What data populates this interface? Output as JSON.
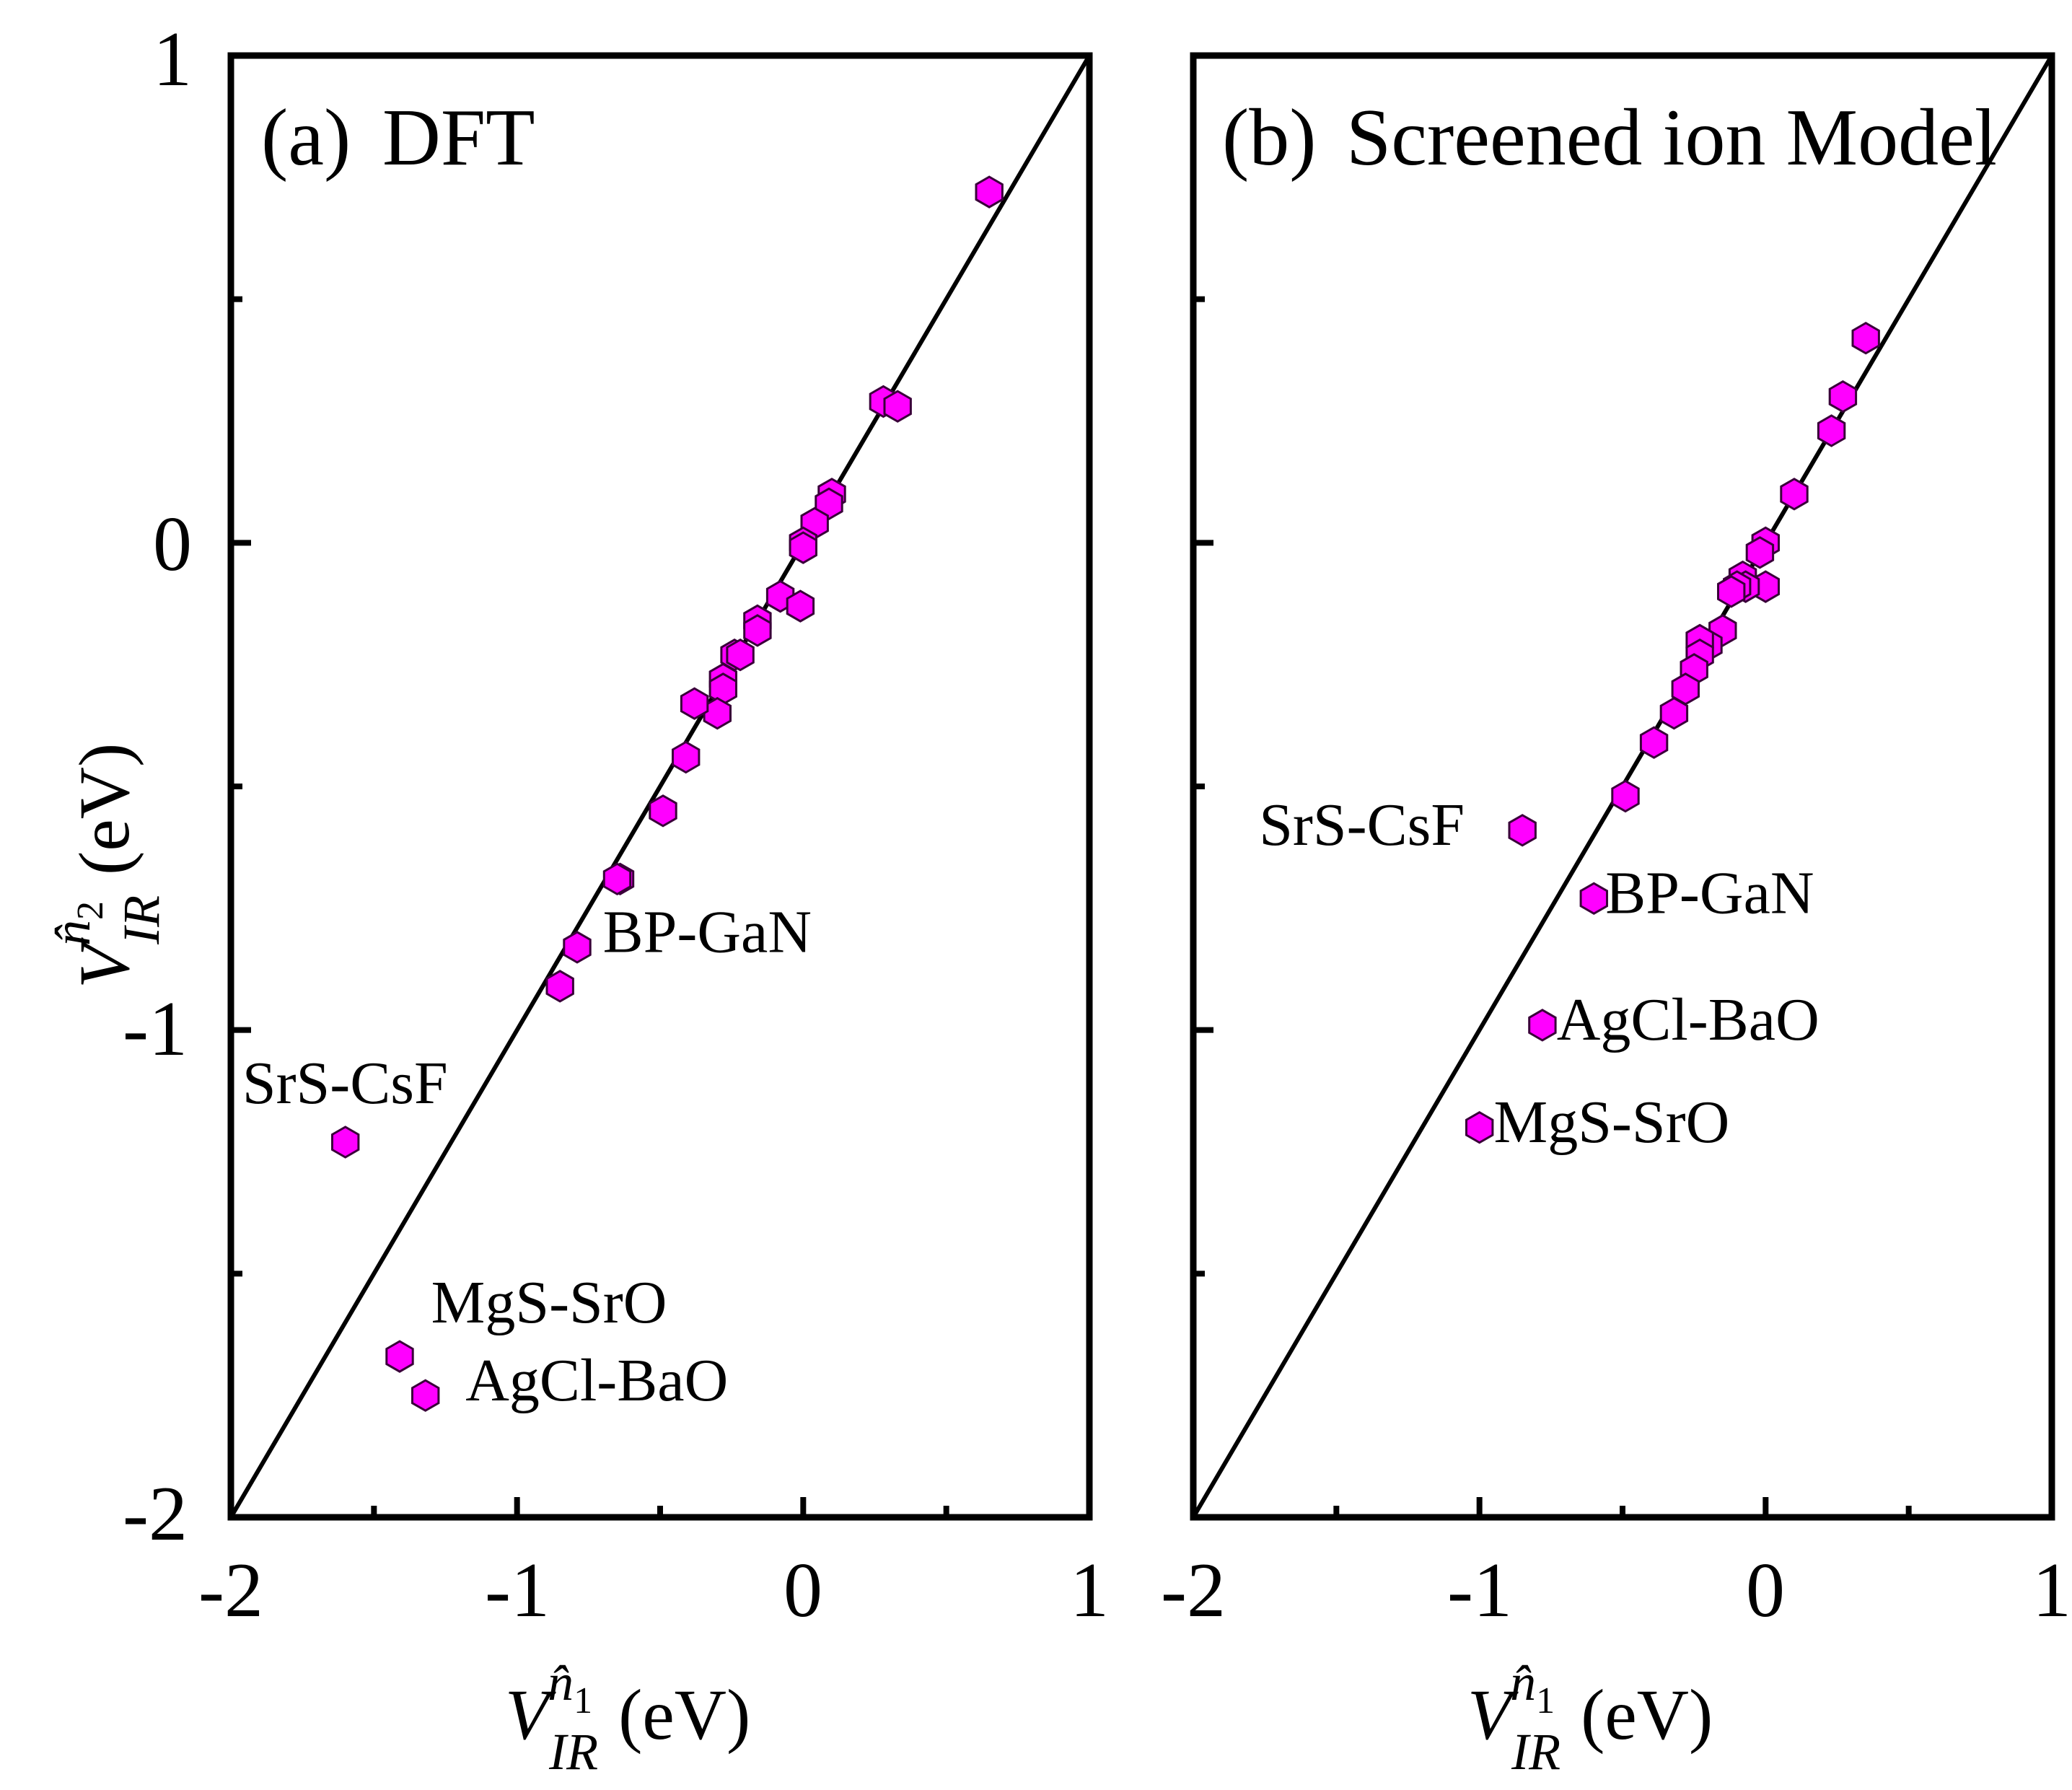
{
  "figure": {
    "colors": {
      "marker_fill": "#ff00ff",
      "marker_stroke": "#3a003a",
      "frame": "#000000",
      "diagonal": "#000000"
    }
  },
  "chart_data": [
    {
      "type": "scatter",
      "panel_label": "(a)",
      "title": "DFT",
      "xlabel": "V_IR^{n1} (eV)",
      "ylabel": "V_IR^{n2} (eV)",
      "xlim": [
        -2,
        1
      ],
      "ylim": [
        -2,
        1
      ],
      "x_ticks": [
        -2,
        -1,
        0,
        1
      ],
      "y_ticks": [
        -2,
        -1,
        0,
        1
      ],
      "x_tick_labels": [
        "-2",
        "-1",
        "0",
        "1"
      ],
      "y_tick_labels": [
        "-2",
        "-1",
        "0",
        "1"
      ],
      "reference_line": "y = x",
      "points": [
        {
          "x": 0.65,
          "y": 0.72
        },
        {
          "x": 0.28,
          "y": 0.29
        },
        {
          "x": 0.33,
          "y": 0.28
        },
        {
          "x": 0.1,
          "y": 0.1
        },
        {
          "x": 0.09,
          "y": 0.08
        },
        {
          "x": 0.04,
          "y": 0.04
        },
        {
          "x": 0.0,
          "y": 0.0
        },
        {
          "x": 0.0,
          "y": -0.01
        },
        {
          "x": -0.08,
          "y": -0.11
        },
        {
          "x": -0.01,
          "y": -0.13
        },
        {
          "x": -0.16,
          "y": -0.16
        },
        {
          "x": -0.16,
          "y": -0.18
        },
        {
          "x": -0.24,
          "y": -0.23
        },
        {
          "x": -0.22,
          "y": -0.23
        },
        {
          "x": -0.28,
          "y": -0.28
        },
        {
          "x": -0.28,
          "y": -0.3
        },
        {
          "x": -0.3,
          "y": -0.35
        },
        {
          "x": -0.38,
          "y": -0.33
        },
        {
          "x": -0.41,
          "y": -0.44
        },
        {
          "x": -0.49,
          "y": -0.55
        },
        {
          "x": -0.64,
          "y": -0.69
        },
        {
          "x": -0.65,
          "y": -0.69
        },
        {
          "x": -0.79,
          "y": -0.83
        },
        {
          "x": -0.85,
          "y": -0.91
        },
        {
          "x": -1.6,
          "y": -1.23
        },
        {
          "x": -1.41,
          "y": -1.67
        },
        {
          "x": -1.32,
          "y": -1.75
        }
      ],
      "annotations": [
        {
          "text": "BP-GaN",
          "x": -0.7,
          "y": -0.84
        },
        {
          "text": "SrS-CsF",
          "x": -1.96,
          "y": -1.15
        },
        {
          "text": "MgS-SrO",
          "x": -1.3,
          "y": -1.6
        },
        {
          "text": "AgCl-BaO",
          "x": -1.18,
          "y": -1.76
        }
      ]
    },
    {
      "type": "scatter",
      "panel_label": "(b)",
      "title": "Screened ion Model",
      "xlabel": "V_IR^{n1} (eV)",
      "ylabel": "",
      "xlim": [
        -2,
        1
      ],
      "ylim": [
        -2,
        1
      ],
      "x_ticks": [
        -2,
        -1,
        0,
        1
      ],
      "y_ticks": [
        -2,
        -1,
        0,
        1
      ],
      "x_tick_labels": [
        "-2",
        "-1",
        "0",
        "1"
      ],
      "y_tick_labels": [],
      "reference_line": "y = x",
      "points": [
        {
          "x": 0.35,
          "y": 0.42
        },
        {
          "x": 0.27,
          "y": 0.3
        },
        {
          "x": 0.23,
          "y": 0.23
        },
        {
          "x": 0.1,
          "y": 0.1
        },
        {
          "x": 0.0,
          "y": 0.0
        },
        {
          "x": -0.02,
          "y": -0.02
        },
        {
          "x": 0.0,
          "y": -0.09
        },
        {
          "x": -0.08,
          "y": -0.07
        },
        {
          "x": -0.07,
          "y": -0.09
        },
        {
          "x": -0.1,
          "y": -0.09
        },
        {
          "x": -0.12,
          "y": -0.1
        },
        {
          "x": -0.15,
          "y": -0.18
        },
        {
          "x": -0.2,
          "y": -0.21
        },
        {
          "x": -0.23,
          "y": -0.2
        },
        {
          "x": -0.23,
          "y": -0.23
        },
        {
          "x": -0.25,
          "y": -0.26
        },
        {
          "x": -0.28,
          "y": -0.3
        },
        {
          "x": -0.32,
          "y": -0.35
        },
        {
          "x": -0.39,
          "y": -0.41
        },
        {
          "x": -0.49,
          "y": -0.52
        },
        {
          "x": -0.85,
          "y": -0.59
        },
        {
          "x": -0.6,
          "y": -0.73
        },
        {
          "x": -0.78,
          "y": -0.99
        },
        {
          "x": -1.0,
          "y": -1.2
        }
      ],
      "annotations": [
        {
          "text": "SrS-CsF",
          "x": -1.77,
          "y": -0.62
        },
        {
          "text": "BP-GaN",
          "x": -0.56,
          "y": -0.76
        },
        {
          "text": "AgCl-BaO",
          "x": -0.73,
          "y": -1.02
        },
        {
          "text": "MgS-SrO",
          "x": -0.95,
          "y": -1.23
        }
      ]
    }
  ]
}
